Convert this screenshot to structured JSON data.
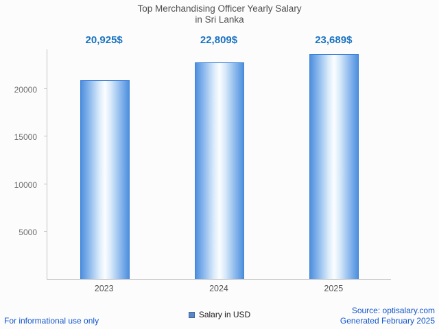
{
  "chart_data": {
    "type": "bar",
    "title": "Top Merchandising Officer Yearly Salary",
    "subtitle": "in Sri Lanka",
    "categories": [
      "2023",
      "2024",
      "2025"
    ],
    "values": [
      20925,
      22809,
      23689
    ],
    "value_labels": [
      "20,925$",
      "22,809$",
      "23,689$"
    ],
    "series_name": "Salary in USD",
    "xlabel": "",
    "ylabel": "",
    "ylim": [
      0,
      24200
    ],
    "yticks": [
      5000,
      10000,
      15000,
      20000
    ],
    "ytick_labels": [
      "5000",
      "10000",
      "15000",
      "20000"
    ],
    "grid": false,
    "legend_position": "bottom",
    "bar_edge_color": "#4e8fdd",
    "bar_center_color": "#fbfdff",
    "bar_border_color": "#3f82d8",
    "value_label_color": "#1a73c2",
    "title_color": "#4d4d4d",
    "axis_color": "#c2c2c2"
  },
  "legend": {
    "label": "Salary in USD"
  },
  "footer": {
    "left": "For informational use only",
    "source": "Source: optisalary.com",
    "generated": "Generated February 2025"
  }
}
